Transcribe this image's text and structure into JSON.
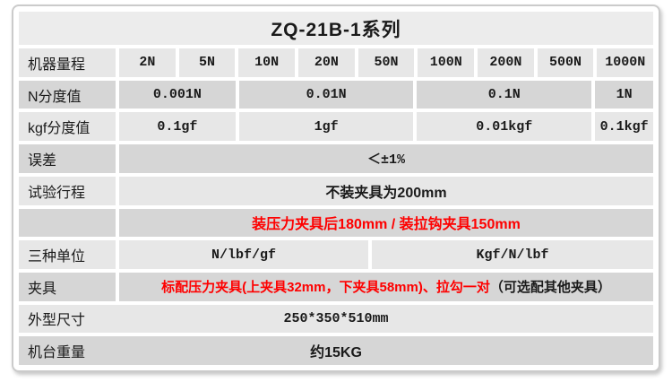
{
  "header": {
    "title": "ZQ-21B-1系列"
  },
  "rows": {
    "range": {
      "label": "机器量程",
      "values": [
        "2N",
        "5N",
        "10N",
        "20N",
        "50N",
        "100N",
        "200N",
        "500N",
        "1000N"
      ]
    },
    "n_division": {
      "label": "N分度值",
      "values": [
        "0.001N",
        "0.01N",
        "0.1N",
        "1N"
      ]
    },
    "kgf_division": {
      "label": "kgf分度值",
      "values": [
        "0.1gf",
        "1gf",
        "0.01kgf",
        "0.1kgf"
      ]
    },
    "error": {
      "label": "误差",
      "value": "＜±1%"
    },
    "stroke": {
      "label": "试验行程",
      "value": "不装夹具为200mm"
    },
    "stroke_with_fixture": {
      "label": "",
      "value": "装压力夹具后180mm / 装拉钩夹具150mm"
    },
    "units": {
      "label": "三种单位",
      "values": [
        "N/lbf/gf",
        "Kgf/N/lbf"
      ]
    },
    "fixture": {
      "label": "夹具",
      "value_red": "标配压力夹具(上夹具32mm，下夹具58mm)、拉勾一对",
      "value_black": "（可选配其他夹具）"
    },
    "dimensions": {
      "label": "外型尺寸",
      "value": "250*350*510mm"
    },
    "weight": {
      "label": "机台重量",
      "value": "约15KG"
    }
  },
  "colors": {
    "red_text": "#fe0000",
    "header_bg": "#ececec",
    "row_light": "#e7e7e7",
    "row_dark": "#d6d6d6",
    "border": "#cbcbcb"
  }
}
